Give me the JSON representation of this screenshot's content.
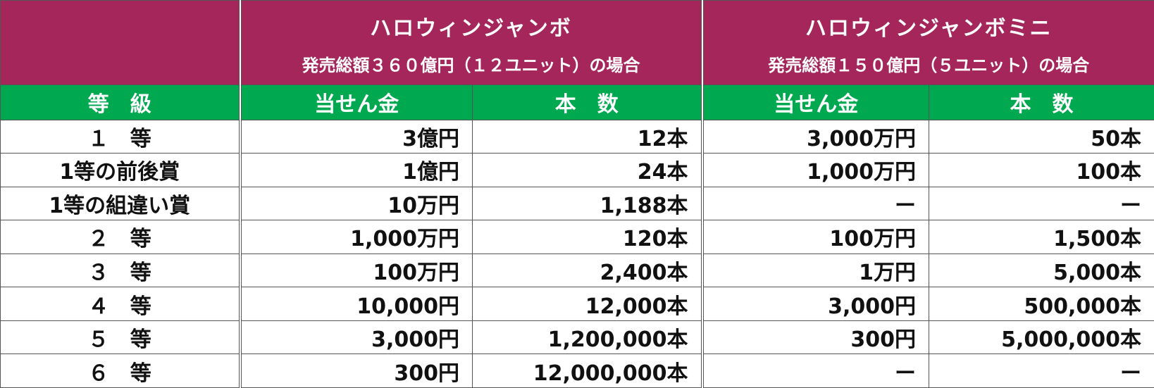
{
  "header": {
    "jumbo_title": "ハロウィンジャンボ",
    "jumbo_subtitle": "発売総額３６０億円（１２ユニット）の場合",
    "mini_title": "ハロウィンジャンボミニ",
    "mini_subtitle": "発売総額１５０億円（５ユニット）の場合"
  },
  "columns": {
    "grade": "等　級",
    "jumbo_prize": "当せん金",
    "jumbo_count": "本　数",
    "mini_prize": "当せん金",
    "mini_count": "本　数"
  },
  "rows": [
    {
      "grade": "１　等",
      "jumbo_prize": "3億円",
      "jumbo_count": "12本",
      "mini_prize": "3,000万円",
      "mini_count": "50本"
    },
    {
      "grade": "1等の前後賞",
      "jumbo_prize": "1億円",
      "jumbo_count": "24本",
      "mini_prize": "1,000万円",
      "mini_count": "100本"
    },
    {
      "grade": "1等の組違い賞",
      "jumbo_prize": "10万円",
      "jumbo_count": "1,188本",
      "mini_prize": "ー",
      "mini_count": "ー"
    },
    {
      "grade": "２　等",
      "jumbo_prize": "1,000万円",
      "jumbo_count": "120本",
      "mini_prize": "100万円",
      "mini_count": "1,500本"
    },
    {
      "grade": "３　等",
      "jumbo_prize": "100万円",
      "jumbo_count": "2,400本",
      "mini_prize": "1万円",
      "mini_count": "5,000本"
    },
    {
      "grade": "４　等",
      "jumbo_prize": "10,000円",
      "jumbo_count": "12,000本",
      "mini_prize": "3,000円",
      "mini_count": "500,000本"
    },
    {
      "grade": "５　等",
      "jumbo_prize": "3,000円",
      "jumbo_count": "1,200,000本",
      "mini_prize": "300円",
      "mini_count": "5,000,000本"
    },
    {
      "grade": "６　等",
      "jumbo_prize": "300円",
      "jumbo_count": "12,000,000本",
      "mini_prize": "ー",
      "mini_count": "ー"
    }
  ],
  "colors": {
    "header_bg": "#a4265b",
    "subheader_bg": "#00a84f",
    "border": "#555555"
  }
}
